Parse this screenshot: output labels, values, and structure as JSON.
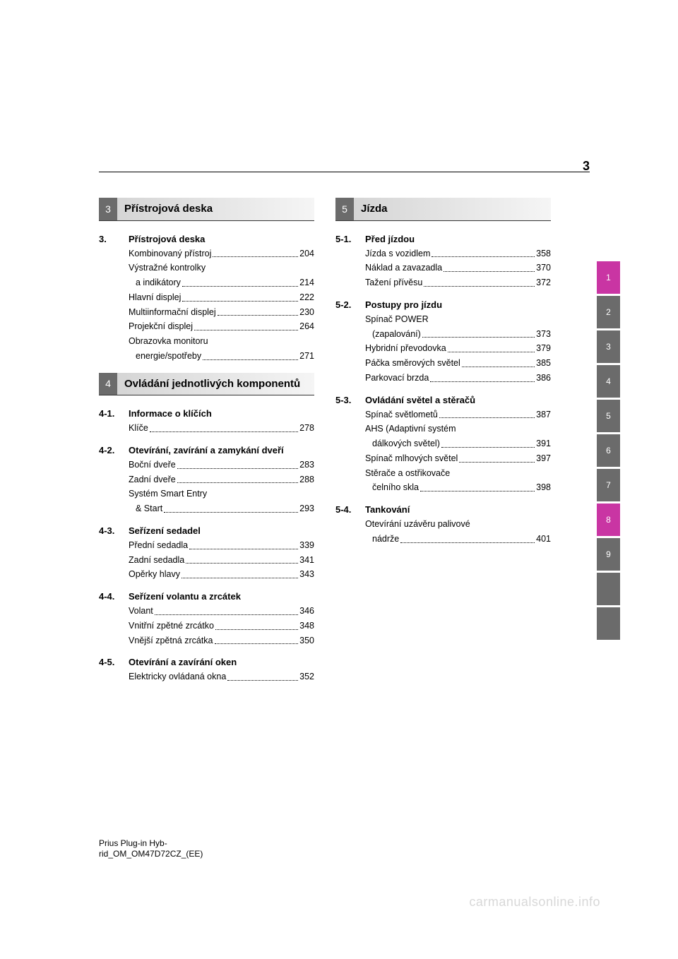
{
  "page_number": "3",
  "footer_line1": "Prius                     Plug-in                     Hyb-",
  "footer_line2": "rid_OM_OM47D72CZ_(EE)",
  "watermark": "carmanualsonline.info",
  "tabs": [
    {
      "label": "1",
      "color": "magenta"
    },
    {
      "label": "2",
      "color": "gray"
    },
    {
      "label": "3",
      "color": "gray"
    },
    {
      "label": "4",
      "color": "gray"
    },
    {
      "label": "5",
      "color": "gray"
    },
    {
      "label": "6",
      "color": "gray"
    },
    {
      "label": "7",
      "color": "gray"
    },
    {
      "label": "8",
      "color": "magenta"
    },
    {
      "label": "9",
      "color": "gray"
    },
    {
      "label": "",
      "color": "blank"
    },
    {
      "label": "",
      "color": "blank"
    }
  ],
  "left": {
    "sec3": {
      "num": "3",
      "title": "Přístrojová deska",
      "sub": {
        "num": "3.",
        "title": "Přístrojová deska"
      },
      "items": [
        {
          "label": "Kombinovaný přístroj",
          "page": "204"
        },
        {
          "label": "Výstražné kontrolky",
          "cont": "a indikátory",
          "page": "214"
        },
        {
          "label": "Hlavní displej",
          "page": "222"
        },
        {
          "label": "Multiinformační displej",
          "page": "230"
        },
        {
          "label": "Projekční displej",
          "page": "264"
        },
        {
          "label": "Obrazovka monitoru",
          "cont": "energie/spotřeby",
          "page": "271"
        }
      ]
    },
    "sec4": {
      "num": "4",
      "title": "Ovládání jednotlivých komponentů",
      "subs": [
        {
          "num": "4-1.",
          "title": "Informace o klíčích",
          "items": [
            {
              "label": "Klíče",
              "page": "278"
            }
          ]
        },
        {
          "num": "4-2.",
          "title": "Otevírání, zavírání a zamykání dveří",
          "items": [
            {
              "label": "Boční dveře",
              "page": "283"
            },
            {
              "label": "Zadní dveře",
              "page": "288"
            },
            {
              "label": "Systém Smart Entry",
              "cont": "& Start",
              "page": "293"
            }
          ]
        },
        {
          "num": "4-3.",
          "title": "Seřízení sedadel",
          "items": [
            {
              "label": "Přední sedadla",
              "page": "339"
            },
            {
              "label": "Zadní sedadla",
              "page": "341"
            },
            {
              "label": "Opěrky hlavy",
              "page": "343"
            }
          ]
        },
        {
          "num": "4-4.",
          "title": "Seřízení volantu a zrcátek",
          "items": [
            {
              "label": "Volant",
              "page": "346"
            },
            {
              "label": "Vnitřní zpětné zrcátko",
              "page": "348"
            },
            {
              "label": "Vnější zpětná zrcátka",
              "page": "350"
            }
          ]
        },
        {
          "num": "4-5.",
          "title": "Otevírání a zavírání oken",
          "items": [
            {
              "label": "Elektricky ovládaná okna",
              "page": "352"
            }
          ]
        }
      ]
    }
  },
  "right": {
    "sec5": {
      "num": "5",
      "title": "Jízda",
      "subs": [
        {
          "num": "5-1.",
          "title": "Před jízdou",
          "items": [
            {
              "label": "Jízda s vozidlem",
              "page": "358"
            },
            {
              "label": "Náklad a zavazadla",
              "page": "370"
            },
            {
              "label": "Tažení přívěsu",
              "page": "372"
            }
          ]
        },
        {
          "num": "5-2.",
          "title": "Postupy pro jízdu",
          "items": [
            {
              "label": "Spínač POWER",
              "cont": "(zapalování)",
              "page": "373"
            },
            {
              "label": "Hybridní převodovka",
              "page": "379"
            },
            {
              "label": "Páčka směrových světel",
              "page": "385"
            },
            {
              "label": "Parkovací brzda",
              "page": "386"
            }
          ]
        },
        {
          "num": "5-3.",
          "title": "Ovládání světel a stěračů",
          "items": [
            {
              "label": "Spínač světlometů",
              "page": "387"
            },
            {
              "label": "AHS (Adaptivní systém",
              "cont": "dálkových světel)",
              "page": "391"
            },
            {
              "label": "Spínač mlhových světel",
              "page": "397"
            },
            {
              "label": "Stěrače a ostřikovače",
              "cont": "čelního skla",
              "page": "398"
            }
          ]
        },
        {
          "num": "5-4.",
          "title": "Tankování",
          "items": [
            {
              "label": "Otevírání uzávěru palivové",
              "cont": "nádrže",
              "page": "401"
            }
          ]
        }
      ]
    }
  }
}
